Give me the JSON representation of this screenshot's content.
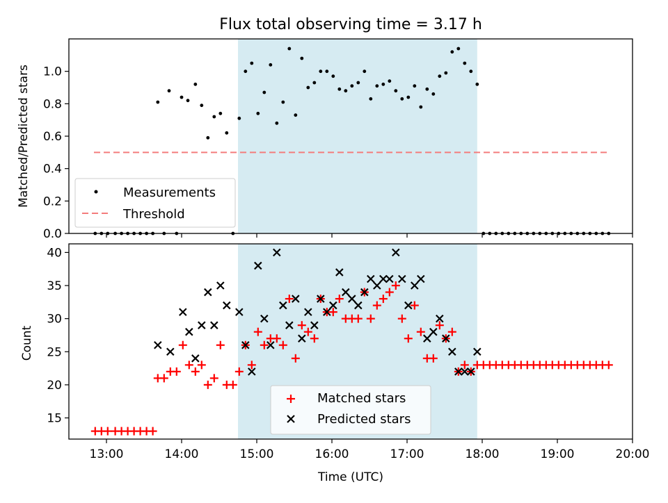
{
  "chart_data": [
    {
      "type": "scatter",
      "title": "Flux total observing time = 3.17 h",
      "xlabel": "",
      "ylabel": "Matched/Predicted stars",
      "xlim": [
        "12:30",
        "20:00"
      ],
      "ylim": [
        0,
        1.2
      ],
      "yticks": [
        "0.0",
        "0.2",
        "0.4",
        "0.6",
        "0.8",
        "1.0"
      ],
      "grid": false,
      "legend_position": "lower-left",
      "shaded_span": [
        "14:45",
        "17:56"
      ],
      "shaded_color": "#add8e6",
      "threshold": {
        "name": "Threshold",
        "y": 0.5,
        "x_start": "12:50",
        "x_end": "19:41",
        "color": "#f47c7c"
      },
      "series": [
        {
          "name": "Measurements",
          "color": "#000000",
          "points": [
            [
              "12:51",
              0
            ],
            [
              "12:56",
              0
            ],
            [
              "13:01",
              0
            ],
            [
              "13:07",
              0
            ],
            [
              "13:12",
              0
            ],
            [
              "13:17",
              0
            ],
            [
              "13:22",
              0
            ],
            [
              "13:27",
              0
            ],
            [
              "13:32",
              0
            ],
            [
              "13:37",
              0
            ],
            [
              "13:41",
              0.81
            ],
            [
              "13:50",
              0.88
            ],
            [
              "13:46",
              0
            ],
            [
              "14:00",
              0.84
            ],
            [
              "13:56",
              0
            ],
            [
              "14:05",
              0.82
            ],
            [
              "14:11",
              0.92
            ],
            [
              "14:16",
              0.79
            ],
            [
              "14:21",
              0.59
            ],
            [
              "14:26",
              0.72
            ],
            [
              "14:31",
              0.74
            ],
            [
              "14:36",
              0.62
            ],
            [
              "14:41",
              0
            ],
            [
              "14:46",
              0.71
            ],
            [
              "14:51",
              1.0
            ],
            [
              "14:56",
              1.05
            ],
            [
              "15:01",
              0.74
            ],
            [
              "15:06",
              0.87
            ],
            [
              "15:11",
              1.04
            ],
            [
              "15:16",
              0.68
            ],
            [
              "15:21",
              0.81
            ],
            [
              "15:26",
              1.14
            ],
            [
              "15:31",
              0.73
            ],
            [
              "15:36",
              1.08
            ],
            [
              "15:41",
              0.9
            ],
            [
              "15:46",
              0.93
            ],
            [
              "15:51",
              1.0
            ],
            [
              "15:56",
              1.0
            ],
            [
              "16:01",
              0.97
            ],
            [
              "16:06",
              0.89
            ],
            [
              "16:11",
              0.88
            ],
            [
              "16:16",
              0.91
            ],
            [
              "16:21",
              0.93
            ],
            [
              "16:26",
              1.0
            ],
            [
              "16:31",
              0.83
            ],
            [
              "16:36",
              0.91
            ],
            [
              "16:41",
              0.92
            ],
            [
              "16:46",
              0.94
            ],
            [
              "16:51",
              0.88
            ],
            [
              "16:56",
              0.83
            ],
            [
              "17:01",
              0.84
            ],
            [
              "17:06",
              0.91
            ],
            [
              "17:11",
              0.78
            ],
            [
              "17:16",
              0.89
            ],
            [
              "17:21",
              0.86
            ],
            [
              "17:26",
              0.97
            ],
            [
              "17:31",
              0.99
            ],
            [
              "17:36",
              1.12
            ],
            [
              "17:41",
              1.14
            ],
            [
              "17:46",
              1.05
            ],
            [
              "17:51",
              1.0
            ],
            [
              "17:56",
              0.92
            ],
            [
              "18:01",
              0
            ],
            [
              "18:06",
              0
            ],
            [
              "18:11",
              0
            ],
            [
              "18:16",
              0
            ],
            [
              "18:21",
              0
            ],
            [
              "18:26",
              0
            ],
            [
              "18:31",
              0
            ],
            [
              "18:36",
              0
            ],
            [
              "18:41",
              0
            ],
            [
              "18:46",
              0
            ],
            [
              "18:51",
              0
            ],
            [
              "18:56",
              0
            ],
            [
              "19:01",
              0
            ],
            [
              "19:06",
              0
            ],
            [
              "19:11",
              0
            ],
            [
              "19:16",
              0
            ],
            [
              "19:21",
              0
            ],
            [
              "19:26",
              0
            ],
            [
              "19:31",
              0
            ],
            [
              "19:36",
              0
            ],
            [
              "19:41",
              0
            ]
          ]
        }
      ]
    },
    {
      "type": "scatter",
      "title": "",
      "xlabel": "Time (UTC)",
      "ylabel": "Count",
      "xlim": [
        "12:30",
        "20:00"
      ],
      "ylim": [
        11.8,
        41.3
      ],
      "xticks": [
        "13:00",
        "14:00",
        "15:00",
        "16:00",
        "17:00",
        "18:00",
        "19:00",
        "20:00"
      ],
      "yticks": [
        "15",
        "20",
        "25",
        "30",
        "35",
        "40"
      ],
      "grid": false,
      "legend_position": "lower-center",
      "shaded_span": [
        "14:45",
        "17:56"
      ],
      "shaded_color": "#add8e6",
      "series": [
        {
          "name": "Matched stars",
          "color": "#ff0000",
          "marker": "+",
          "points": [
            [
              "12:51",
              13
            ],
            [
              "12:56",
              13
            ],
            [
              "13:01",
              13
            ],
            [
              "13:07",
              13
            ],
            [
              "13:12",
              13
            ],
            [
              "13:17",
              13
            ],
            [
              "13:22",
              13
            ],
            [
              "13:27",
              13
            ],
            [
              "13:32",
              13
            ],
            [
              "13:37",
              13
            ],
            [
              "13:41",
              21
            ],
            [
              "13:46",
              21
            ],
            [
              "13:51",
              22
            ],
            [
              "13:56",
              22
            ],
            [
              "14:01",
              26
            ],
            [
              "14:06",
              23
            ],
            [
              "14:11",
              22
            ],
            [
              "14:16",
              23
            ],
            [
              "14:21",
              20
            ],
            [
              "14:26",
              21
            ],
            [
              "14:31",
              26
            ],
            [
              "14:36",
              20
            ],
            [
              "14:41",
              20
            ],
            [
              "14:46",
              22
            ],
            [
              "14:51",
              26
            ],
            [
              "14:56",
              23
            ],
            [
              "15:01",
              28
            ],
            [
              "15:06",
              26
            ],
            [
              "15:11",
              27
            ],
            [
              "15:16",
              27
            ],
            [
              "15:21",
              26
            ],
            [
              "15:26",
              33
            ],
            [
              "15:31",
              24
            ],
            [
              "15:36",
              29
            ],
            [
              "15:41",
              28
            ],
            [
              "15:46",
              27
            ],
            [
              "15:51",
              33
            ],
            [
              "15:56",
              31
            ],
            [
              "16:01",
              31
            ],
            [
              "16:06",
              33
            ],
            [
              "16:11",
              30
            ],
            [
              "16:16",
              30
            ],
            [
              "16:21",
              30
            ],
            [
              "16:26",
              34
            ],
            [
              "16:31",
              30
            ],
            [
              "16:36",
              32
            ],
            [
              "16:41",
              33
            ],
            [
              "16:46",
              34
            ],
            [
              "16:51",
              35
            ],
            [
              "16:56",
              30
            ],
            [
              "17:01",
              27
            ],
            [
              "17:06",
              32
            ],
            [
              "17:11",
              28
            ],
            [
              "17:16",
              24
            ],
            [
              "17:21",
              24
            ],
            [
              "17:26",
              29
            ],
            [
              "17:31",
              27
            ],
            [
              "17:36",
              28
            ],
            [
              "17:41",
              22
            ],
            [
              "17:46",
              23
            ],
            [
              "17:51",
              22
            ],
            [
              "17:56",
              23
            ],
            [
              "18:01",
              23
            ],
            [
              "18:06",
              23
            ],
            [
              "18:11",
              23
            ],
            [
              "18:16",
              23
            ],
            [
              "18:21",
              23
            ],
            [
              "18:26",
              23
            ],
            [
              "18:31",
              23
            ],
            [
              "18:36",
              23
            ],
            [
              "18:41",
              23
            ],
            [
              "18:46",
              23
            ],
            [
              "18:51",
              23
            ],
            [
              "18:56",
              23
            ],
            [
              "19:01",
              23
            ],
            [
              "19:06",
              23
            ],
            [
              "19:11",
              23
            ],
            [
              "19:16",
              23
            ],
            [
              "19:21",
              23
            ],
            [
              "19:26",
              23
            ],
            [
              "19:31",
              23
            ],
            [
              "19:36",
              23
            ],
            [
              "19:41",
              23
            ]
          ]
        },
        {
          "name": "Predicted stars",
          "color": "#000000",
          "marker": "x",
          "points": [
            [
              "13:41",
              26
            ],
            [
              "13:51",
              25
            ],
            [
              "14:01",
              31
            ],
            [
              "14:06",
              28
            ],
            [
              "14:11",
              24
            ],
            [
              "14:16",
              29
            ],
            [
              "14:21",
              34
            ],
            [
              "14:26",
              29
            ],
            [
              "14:31",
              35
            ],
            [
              "14:36",
              32
            ],
            [
              "14:46",
              31
            ],
            [
              "14:51",
              26
            ],
            [
              "14:56",
              22
            ],
            [
              "15:01",
              38
            ],
            [
              "15:06",
              30
            ],
            [
              "15:11",
              26
            ],
            [
              "15:16",
              40
            ],
            [
              "15:21",
              32
            ],
            [
              "15:26",
              29
            ],
            [
              "15:31",
              33
            ],
            [
              "15:36",
              27
            ],
            [
              "15:41",
              31
            ],
            [
              "15:46",
              29
            ],
            [
              "15:51",
              33
            ],
            [
              "15:56",
              31
            ],
            [
              "16:01",
              32
            ],
            [
              "16:06",
              37
            ],
            [
              "16:11",
              34
            ],
            [
              "16:16",
              33
            ],
            [
              "16:21",
              32
            ],
            [
              "16:26",
              34
            ],
            [
              "16:31",
              36
            ],
            [
              "16:36",
              35
            ],
            [
              "16:41",
              36
            ],
            [
              "16:46",
              36
            ],
            [
              "16:51",
              40
            ],
            [
              "16:56",
              36
            ],
            [
              "17:01",
              32
            ],
            [
              "17:06",
              35
            ],
            [
              "17:11",
              36
            ],
            [
              "17:16",
              27
            ],
            [
              "17:21",
              28
            ],
            [
              "17:26",
              30
            ],
            [
              "17:31",
              27
            ],
            [
              "17:36",
              25
            ],
            [
              "17:41",
              22
            ],
            [
              "17:46",
              22
            ],
            [
              "17:51",
              22
            ],
            [
              "17:56",
              25
            ]
          ]
        }
      ]
    }
  ]
}
